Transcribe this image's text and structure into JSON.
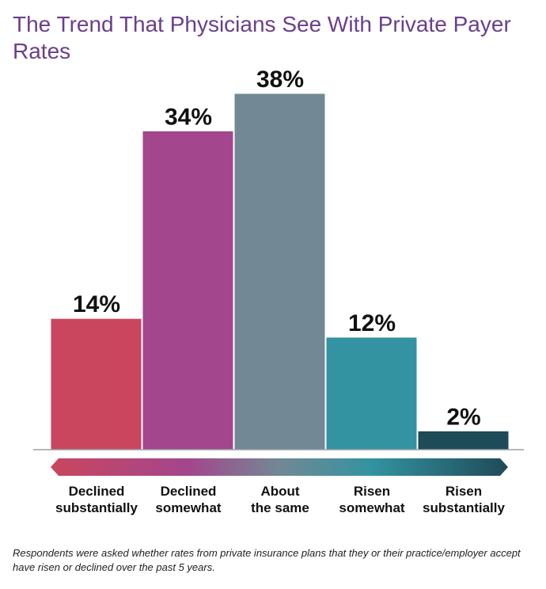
{
  "title": "The Trend That Physicians See With Private Payer Rates",
  "footnote": "Respondents were asked whether rates from private insurance plans that they or their practice/employer accept have risen or declined over the past 5 years.",
  "colors": {
    "title": "#6b3f8a",
    "bars": [
      "#c9465e",
      "#a3468d",
      "#728894",
      "#3393a1",
      "#1f4a57"
    ],
    "gradient": [
      "#c9465e",
      "#a3468d",
      "#728894",
      "#3393a1",
      "#1f4a57"
    ]
  },
  "chart_data": {
    "type": "bar",
    "title": "The Trend That Physicians See With Private Payer Rates",
    "xlabel": "",
    "ylabel": "",
    "categories": [
      "Declined substantially",
      "Declined somewhat",
      "About the same",
      "Risen somewhat",
      "Risen substantially"
    ],
    "category_lines": [
      [
        "Declined",
        "substantially"
      ],
      [
        "Declined",
        "somewhat"
      ],
      [
        "About",
        "the same"
      ],
      [
        "Risen",
        "somewhat"
      ],
      [
        "Risen",
        "substantially"
      ]
    ],
    "values": [
      14,
      34,
      38,
      12,
      2
    ],
    "data_labels": [
      "14%",
      "34%",
      "38%",
      "12%",
      "2%"
    ],
    "unit": "%",
    "ylim": [
      0,
      38
    ],
    "grid": false,
    "legend": "none"
  }
}
